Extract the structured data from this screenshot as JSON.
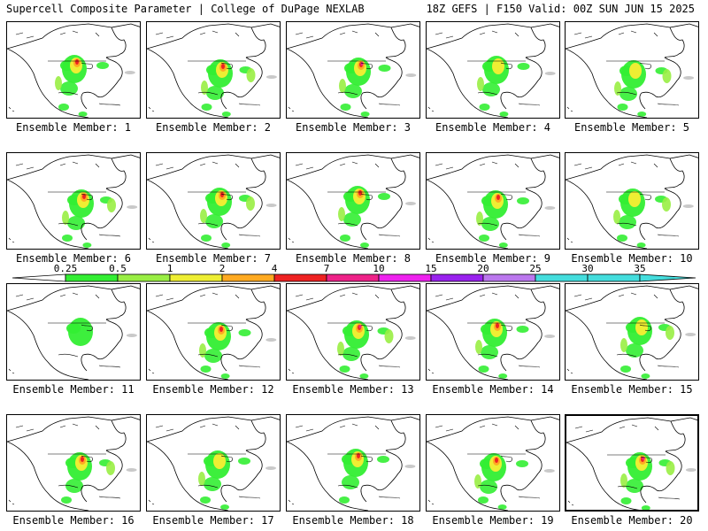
{
  "header": {
    "title": "Supercell Composite Parameter | College of DuPage NEXLAB",
    "run_info": "18Z GEFS | F150 Valid: 00Z SUN JUN 15 2025"
  },
  "member_label_prefix": "Ensemble Member: ",
  "members": [
    1,
    2,
    3,
    4,
    5,
    6,
    7,
    8,
    9,
    10,
    11,
    12,
    13,
    14,
    15,
    16,
    17,
    18,
    19,
    20
  ],
  "highlighted_member": 20,
  "colorbar": {
    "ticks": [
      "0.25",
      "0.5",
      "1",
      "2",
      "4",
      "7",
      "10",
      "15",
      "20",
      "25",
      "30",
      "35"
    ],
    "colors": [
      "#ffffff",
      "#33ee33",
      "#99ee44",
      "#eeee33",
      "#ffaa22",
      "#ee2222",
      "#ee2288",
      "#ee22ee",
      "#9922ee",
      "#bb77ee",
      "#44dddd"
    ],
    "color_roles": {
      "gray_low": "#bbbbbb",
      "land_outline": "#000000"
    }
  },
  "intensity": [
    {
      "core": 3,
      "south": 2,
      "east": 1
    },
    {
      "core": 3,
      "south": 2,
      "east": 2
    },
    {
      "core": 4,
      "south": 2,
      "east": 1
    },
    {
      "core": 2,
      "south": 2,
      "east": 1
    },
    {
      "core": 2,
      "south": 2,
      "east": 2
    },
    {
      "core": 3,
      "south": 2,
      "east": 2
    },
    {
      "core": 3,
      "south": 2,
      "east": 2
    },
    {
      "core": 3,
      "south": 2,
      "east": 1
    },
    {
      "core": 3,
      "south": 2,
      "east": 1
    },
    {
      "core": 2,
      "south": 2,
      "east": 2
    },
    {
      "core": 1,
      "south": 0,
      "east": 0
    },
    {
      "core": 3,
      "south": 2,
      "east": 1
    },
    {
      "core": 4,
      "south": 2,
      "east": 2
    },
    {
      "core": 3,
      "south": 2,
      "east": 1
    },
    {
      "core": 2,
      "south": 2,
      "east": 2
    },
    {
      "core": 3,
      "south": 1,
      "east": 2
    },
    {
      "core": 2,
      "south": 2,
      "east": 1
    },
    {
      "core": 3,
      "south": 1,
      "east": 1
    },
    {
      "core": 3,
      "south": 2,
      "east": 1
    },
    {
      "core": 4,
      "south": 2,
      "east": 2
    }
  ]
}
